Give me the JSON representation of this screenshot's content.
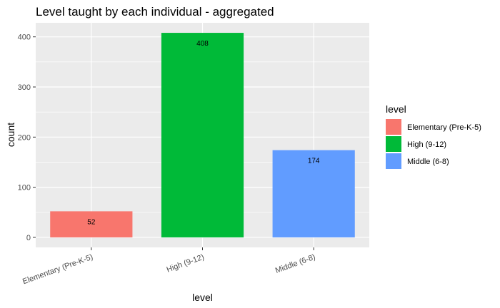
{
  "chart_data": {
    "type": "bar",
    "title": "Level taught by each individual - aggregated",
    "xlabel": "level",
    "ylabel": "count",
    "categories": [
      "Elementary (Pre-K-5)",
      "High (9-12)",
      "Middle (6-8)"
    ],
    "values": [
      52,
      408,
      174
    ],
    "data_labels": [
      "52",
      "408",
      "174"
    ],
    "colors": [
      "#F8766D",
      "#00BA38",
      "#619CFF"
    ],
    "yticks": [
      0,
      100,
      200,
      300,
      400
    ],
    "ytick_labels": [
      "0",
      "100",
      "200",
      "300",
      "400"
    ],
    "ylim": [
      -20,
      428
    ],
    "grid": true,
    "panel_background": "#EBEBEB",
    "legend": {
      "title": "level",
      "position": "right",
      "entries": [
        "Elementary (Pre-K-5)",
        "High (9-12)",
        "Middle (6-8)"
      ]
    }
  }
}
